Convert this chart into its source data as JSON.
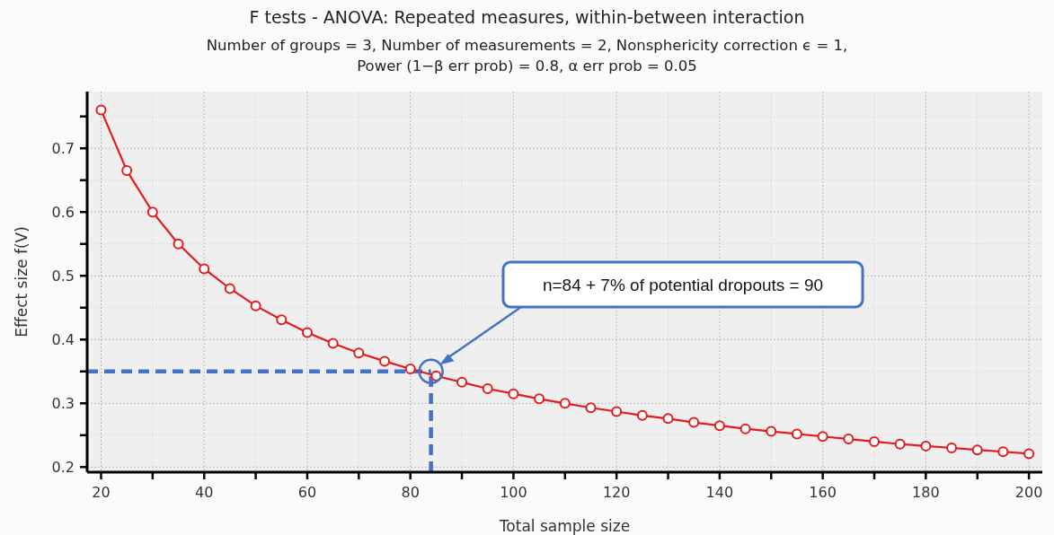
{
  "chart_data": {
    "type": "line",
    "title": "F tests - ANOVA: Repeated measures, within-between interaction",
    "subtitle": "Number of groups = 3, Number of measurements = 2, Nonsphericity correction ϵ = 1,\nPower (1−β err prob) = 0.8, α err prob = 0.05",
    "xlabel": "Total sample size",
    "ylabel": "Effect size f(V)",
    "x": [
      20,
      25,
      30,
      35,
      40,
      45,
      50,
      55,
      60,
      65,
      70,
      75,
      80,
      85,
      90,
      95,
      100,
      105,
      110,
      115,
      120,
      125,
      130,
      135,
      140,
      145,
      150,
      155,
      160,
      165,
      170,
      175,
      180,
      185,
      190,
      195,
      200
    ],
    "series": [
      {
        "color": "#e41a1c",
        "values": [
          0.76,
          0.665,
          0.6,
          0.55,
          0.511,
          0.48,
          0.453,
          0.431,
          0.411,
          0.394,
          0.379,
          0.366,
          0.354,
          0.343,
          0.333,
          0.323,
          0.315,
          0.307,
          0.3,
          0.293,
          0.287,
          0.281,
          0.276,
          0.27,
          0.265,
          0.26,
          0.256,
          0.252,
          0.248,
          0.244,
          0.24,
          0.236,
          0.233,
          0.23,
          0.227,
          0.224,
          0.221
        ]
      }
    ],
    "xlim": [
      17.3,
      202.6
    ],
    "ylim": [
      0.192,
      0.789
    ],
    "xticks": [
      20,
      {
        "value": 30,
        "label": null
      },
      40,
      {
        "value": 50,
        "label": null
      },
      60,
      {
        "value": 70,
        "label": null
      },
      80,
      {
        "value": 90,
        "label": null
      },
      100,
      {
        "value": 110,
        "label": null
      },
      120,
      {
        "value": 130,
        "label": null
      },
      140,
      {
        "value": 150,
        "label": null
      },
      160,
      {
        "value": 170,
        "label": null
      },
      180,
      {
        "value": 190,
        "label": null
      },
      200
    ],
    "yticks": [
      0.2,
      {
        "value": 0.25,
        "label": null
      },
      0.3,
      {
        "value": 0.35,
        "label": null
      },
      0.4,
      {
        "value": 0.45,
        "label": null
      },
      0.5,
      {
        "value": 0.55,
        "label": null
      },
      0.6,
      {
        "value": 0.65,
        "label": null
      },
      0.7,
      {
        "value": 0.75,
        "label": null
      }
    ],
    "grid": true,
    "marker": "circle",
    "line_style": "solid",
    "ref_lines": [
      {
        "axis": "y",
        "value": 0.35,
        "color": "#4472c4",
        "line_style": "dashed"
      },
      {
        "axis": "x",
        "value": 84,
        "color": "#4472c4",
        "line_style": "dashed"
      }
    ],
    "annotations": [
      "n=84 + 7% of potential dropouts = 90"
    ]
  }
}
